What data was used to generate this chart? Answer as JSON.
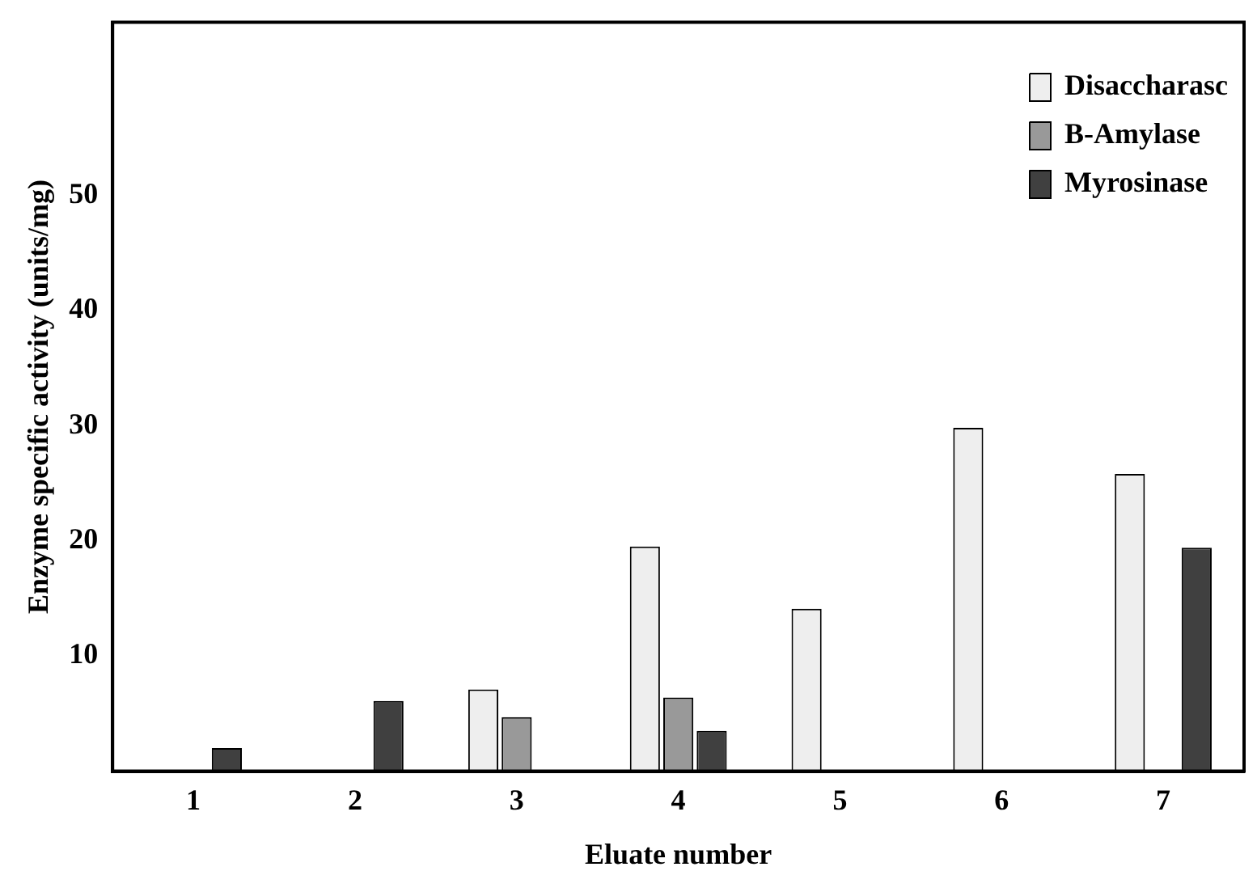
{
  "chart_data": {
    "type": "bar",
    "xlabel": "Eluate number",
    "ylabel": "Enzyme specific activity (units/mg)",
    "categories": [
      "1",
      "2",
      "3",
      "4",
      "5",
      "6",
      "7"
    ],
    "series": [
      {
        "name": "Disaccharasc",
        "color": "#eeeeee",
        "values": [
          null,
          null,
          7.1,
          19.5,
          14.1,
          29.8,
          25.8
        ]
      },
      {
        "name": "B-Amylase",
        "color": "#999999",
        "values": [
          null,
          null,
          4.7,
          6.4,
          null,
          null,
          null
        ]
      },
      {
        "name": "Myrosinase",
        "color": "#404040",
        "values": [
          2.0,
          6.1,
          null,
          3.5,
          null,
          null,
          19.4
        ]
      }
    ],
    "ylim": [
      0,
      65
    ],
    "yticks": [
      10,
      20,
      30,
      40,
      50
    ],
    "grid": false,
    "legend": "top right"
  }
}
